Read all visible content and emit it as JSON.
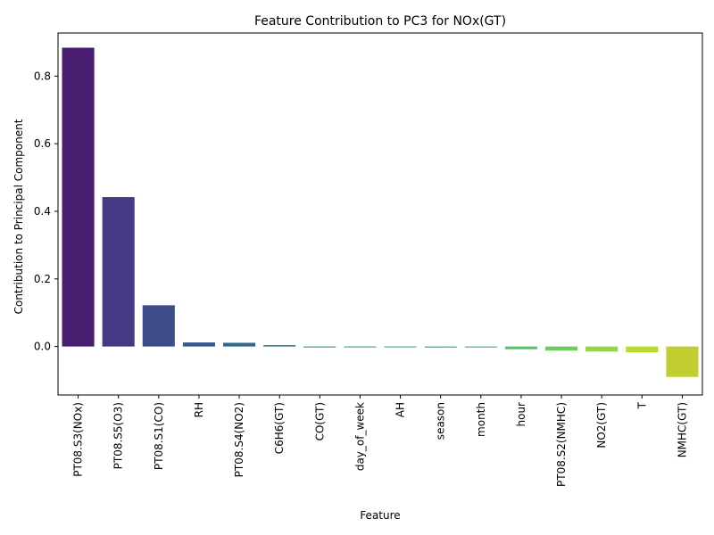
{
  "chart_data": {
    "type": "bar",
    "title": "Feature Contribution to PC3 for NOx(GT)",
    "xlabel": "Feature",
    "ylabel": "Contribution to Principal Component",
    "categories": [
      "PT08.S3(NOx)",
      "PT08.S5(O3)",
      "PT08.S1(CO)",
      "RH",
      "PT08.S4(NO2)",
      "C6H6(GT)",
      "CO(GT)",
      "day_of_week",
      "AH",
      "season",
      "month",
      "hour",
      "PT08.S2(NMHC)",
      "NO2(GT)",
      "T",
      "NMHC(GT)"
    ],
    "values": [
      0.884,
      0.442,
      0.122,
      0.012,
      0.011,
      0.004,
      0.0,
      -0.002,
      -0.002,
      -0.003,
      -0.003,
      -0.008,
      -0.012,
      -0.015,
      -0.017,
      -0.09
    ],
    "colors": [
      "#481d6f",
      "#443983",
      "#3e4c8a",
      "#375a8c",
      "#31688e",
      "#2b758e",
      "#26828e",
      "#21918c",
      "#1f9e89",
      "#25ab82",
      "#37b878",
      "#52c569",
      "#6ccd5a",
      "#92d741",
      "#b8de29",
      "#c2ce2f"
    ],
    "ylim": [
      -0.1435,
      0.9275
    ],
    "yticks": [
      0.0,
      0.2,
      0.4,
      0.6,
      0.8
    ],
    "ytick_labels": [
      "0.0",
      "0.2",
      "0.4",
      "0.6",
      "0.8"
    ],
    "grid": false,
    "legend": false
  }
}
